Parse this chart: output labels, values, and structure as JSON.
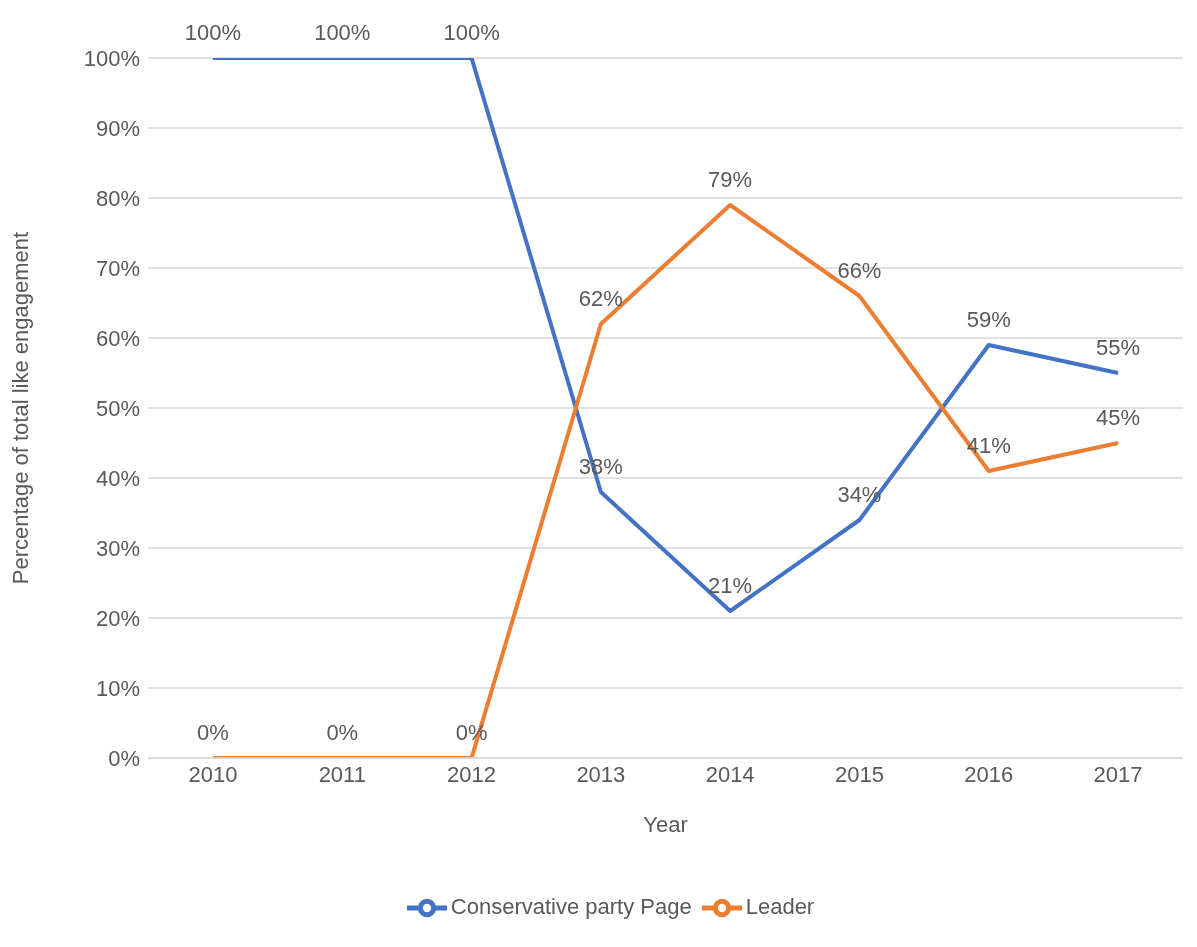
{
  "chart_data": {
    "type": "line",
    "xlabel": "Year",
    "ylabel": "Percentage of total like engagement",
    "categories": [
      "2010",
      "2011",
      "2012",
      "2013",
      "2014",
      "2015",
      "2016",
      "2017"
    ],
    "series": [
      {
        "name": "Conservative party Page",
        "color": "#4472c4",
        "values": [
          100,
          100,
          100,
          38,
          21,
          34,
          59,
          55
        ],
        "value_labels": [
          "100%",
          "100%",
          "100%",
          "38%",
          "21%",
          "34%",
          "59%",
          "55%"
        ]
      },
      {
        "name": "Leader",
        "color": "#ed7d31",
        "values": [
          0,
          0,
          0,
          62,
          79,
          66,
          41,
          45
        ],
        "value_labels": [
          "0%",
          "0%",
          "0%",
          "62%",
          "79%",
          "66%",
          "41%",
          "45%"
        ]
      }
    ],
    "ylim": [
      0,
      100
    ],
    "yticks": [
      {
        "value": 0,
        "label": "0%"
      },
      {
        "value": 10,
        "label": "10%"
      },
      {
        "value": 20,
        "label": "20%"
      },
      {
        "value": 30,
        "label": "30%"
      },
      {
        "value": 40,
        "label": "40%"
      },
      {
        "value": 50,
        "label": "50%"
      },
      {
        "value": 60,
        "label": "60%"
      },
      {
        "value": 70,
        "label": "70%"
      },
      {
        "value": 80,
        "label": "80%"
      },
      {
        "value": 90,
        "label": "90%"
      },
      {
        "value": 100,
        "label": "100%"
      }
    ],
    "grid": "y",
    "legend": "bottom",
    "marker": "none",
    "line_style": "solid"
  }
}
